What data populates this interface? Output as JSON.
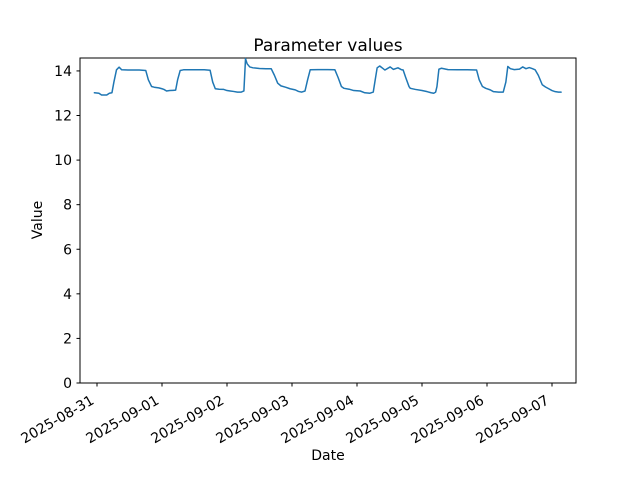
{
  "window": {
    "background": "#ffffff"
  },
  "chart_data": {
    "type": "line",
    "title": "Parameter values",
    "xlabel": "Date",
    "ylabel": "Value",
    "grid": false,
    "legend": null,
    "line_color": "#1f77b4",
    "axis_color": "#000000",
    "x_unit": "days since first x tick (2025-08-31 00:00)",
    "x_tick_labels": [
      "2025-08-31",
      "2025-09-01",
      "2025-09-02",
      "2025-09-03",
      "2025-09-04",
      "2025-09-05",
      "2025-09-06",
      "2025-09-07"
    ],
    "x_tick_days": [
      0,
      1,
      2,
      3,
      4,
      5,
      6,
      7
    ],
    "x_tick_rotation_deg": -30,
    "y_ticks": [
      0,
      2,
      4,
      6,
      8,
      10,
      12,
      14
    ],
    "xlim_days": [
      -0.2615,
      7.3692
    ],
    "ylim": [
      0,
      14.58
    ],
    "series": [
      {
        "name": "Parameter values",
        "color": "#1f77b4",
        "points": [
          [
            -0.04,
            13.02
          ],
          [
            0.03,
            13.0
          ],
          [
            0.07,
            12.92
          ],
          [
            0.15,
            12.92
          ],
          [
            0.19,
            13.0
          ],
          [
            0.23,
            13.02
          ],
          [
            0.26,
            13.5
          ],
          [
            0.3,
            14.05
          ],
          [
            0.34,
            14.17
          ],
          [
            0.38,
            14.05
          ],
          [
            0.5,
            14.04
          ],
          [
            0.65,
            14.04
          ],
          [
            0.75,
            14.02
          ],
          [
            0.79,
            13.6
          ],
          [
            0.84,
            13.3
          ],
          [
            0.88,
            13.27
          ],
          [
            0.95,
            13.24
          ],
          [
            1.0,
            13.2
          ],
          [
            1.03,
            13.17
          ],
          [
            1.07,
            13.1
          ],
          [
            1.12,
            13.12
          ],
          [
            1.17,
            13.13
          ],
          [
            1.21,
            13.14
          ],
          [
            1.24,
            13.6
          ],
          [
            1.28,
            14.02
          ],
          [
            1.33,
            14.05
          ],
          [
            1.5,
            14.05
          ],
          [
            1.65,
            14.05
          ],
          [
            1.74,
            14.03
          ],
          [
            1.78,
            13.5
          ],
          [
            1.82,
            13.2
          ],
          [
            1.88,
            13.18
          ],
          [
            1.95,
            13.17
          ],
          [
            2.0,
            13.12
          ],
          [
            2.05,
            13.1
          ],
          [
            2.1,
            13.08
          ],
          [
            2.16,
            13.05
          ],
          [
            2.22,
            13.05
          ],
          [
            2.26,
            13.1
          ],
          [
            2.285,
            14.55
          ],
          [
            2.31,
            14.32
          ],
          [
            2.35,
            14.18
          ],
          [
            2.4,
            14.14
          ],
          [
            2.5,
            14.11
          ],
          [
            2.6,
            14.1
          ],
          [
            2.68,
            14.1
          ],
          [
            2.73,
            13.8
          ],
          [
            2.78,
            13.45
          ],
          [
            2.83,
            13.33
          ],
          [
            2.9,
            13.27
          ],
          [
            2.97,
            13.2
          ],
          [
            3.05,
            13.15
          ],
          [
            3.1,
            13.08
          ],
          [
            3.15,
            13.05
          ],
          [
            3.2,
            13.1
          ],
          [
            3.24,
            13.6
          ],
          [
            3.28,
            14.05
          ],
          [
            3.4,
            14.06
          ],
          [
            3.55,
            14.06
          ],
          [
            3.66,
            14.05
          ],
          [
            3.71,
            13.7
          ],
          [
            3.76,
            13.3
          ],
          [
            3.8,
            13.22
          ],
          [
            3.88,
            13.18
          ],
          [
            3.95,
            13.12
          ],
          [
            4.05,
            13.1
          ],
          [
            4.12,
            13.02
          ],
          [
            4.2,
            13.0
          ],
          [
            4.25,
            13.05
          ],
          [
            4.28,
            13.6
          ],
          [
            4.31,
            14.14
          ],
          [
            4.35,
            14.22
          ],
          [
            4.43,
            14.04
          ],
          [
            4.51,
            14.18
          ],
          [
            4.56,
            14.07
          ],
          [
            4.63,
            14.14
          ],
          [
            4.68,
            14.06
          ],
          [
            4.71,
            14.04
          ],
          [
            4.75,
            13.7
          ],
          [
            4.8,
            13.3
          ],
          [
            4.82,
            13.22
          ],
          [
            4.9,
            13.17
          ],
          [
            5.0,
            13.12
          ],
          [
            5.08,
            13.07
          ],
          [
            5.14,
            13.02
          ],
          [
            5.18,
            13.0
          ],
          [
            5.21,
            13.05
          ],
          [
            5.23,
            13.3
          ],
          [
            5.26,
            14.08
          ],
          [
            5.3,
            14.12
          ],
          [
            5.4,
            14.06
          ],
          [
            5.55,
            14.05
          ],
          [
            5.7,
            14.05
          ],
          [
            5.84,
            14.04
          ],
          [
            5.88,
            13.6
          ],
          [
            5.93,
            13.3
          ],
          [
            5.98,
            13.22
          ],
          [
            6.05,
            13.15
          ],
          [
            6.1,
            13.07
          ],
          [
            6.18,
            13.05
          ],
          [
            6.25,
            13.05
          ],
          [
            6.29,
            13.5
          ],
          [
            6.32,
            14.2
          ],
          [
            6.36,
            14.1
          ],
          [
            6.42,
            14.06
          ],
          [
            6.5,
            14.08
          ],
          [
            6.55,
            14.18
          ],
          [
            6.6,
            14.1
          ],
          [
            6.65,
            14.15
          ],
          [
            6.7,
            14.1
          ],
          [
            6.74,
            14.05
          ],
          [
            6.79,
            13.8
          ],
          [
            6.85,
            13.38
          ],
          [
            6.9,
            13.28
          ],
          [
            6.95,
            13.2
          ],
          [
            7.0,
            13.12
          ],
          [
            7.05,
            13.07
          ],
          [
            7.1,
            13.05
          ],
          [
            7.14,
            13.05
          ]
        ]
      }
    ]
  }
}
